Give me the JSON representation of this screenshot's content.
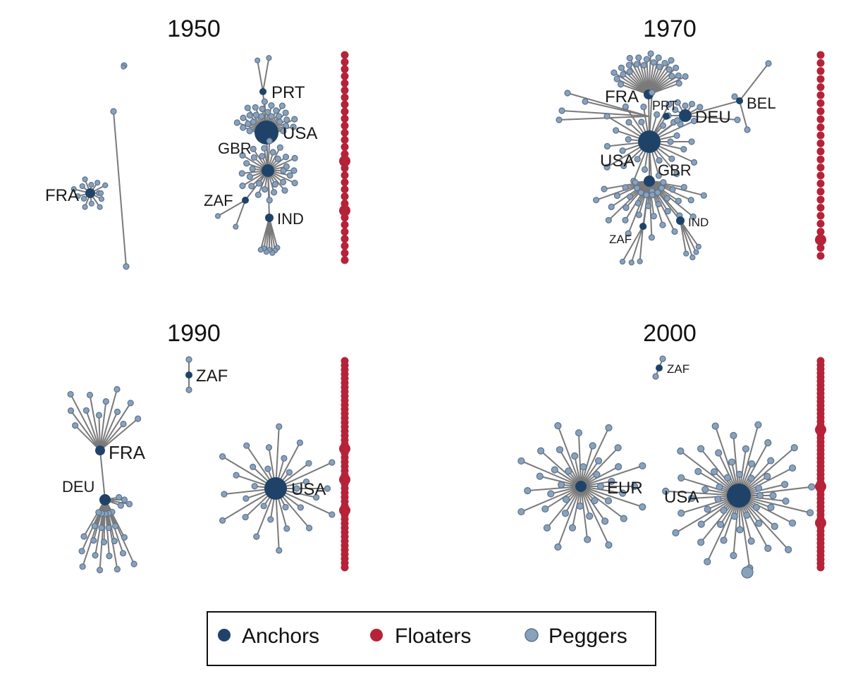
{
  "colors": {
    "anchor": "#1f4368",
    "floater": "#b52339",
    "pegger": "#8aa1ba",
    "pegger_stroke": "#5a7391",
    "edge": "#7a7a7a"
  },
  "legend": {
    "items": [
      {
        "label": "Anchors",
        "color": "#1f4368"
      },
      {
        "label": "Floaters",
        "color": "#b52339"
      },
      {
        "label": "Peggers",
        "color": "#8aa1ba"
      }
    ]
  },
  "panels": [
    {
      "title": "1950",
      "anchors": [
        {
          "label": "USA"
        },
        {
          "label": "GBR"
        },
        {
          "label": "PRT"
        },
        {
          "label": "ZAF"
        },
        {
          "label": "IND"
        },
        {
          "label": "FRA"
        }
      ]
    },
    {
      "title": "1970",
      "anchors": [
        {
          "label": "FRA"
        },
        {
          "label": "PRT"
        },
        {
          "label": "DEU"
        },
        {
          "label": "BEL"
        },
        {
          "label": "USA"
        },
        {
          "label": "GBR"
        },
        {
          "label": "ZAF"
        },
        {
          "label": "IND"
        }
      ]
    },
    {
      "title": "1990",
      "anchors": [
        {
          "label": "ZAF"
        },
        {
          "label": "FRA"
        },
        {
          "label": "DEU"
        },
        {
          "label": "USA"
        }
      ]
    },
    {
      "title": "2000",
      "anchors": [
        {
          "label": "ZAF"
        },
        {
          "label": "EUR"
        },
        {
          "label": "USA"
        }
      ]
    }
  ]
}
